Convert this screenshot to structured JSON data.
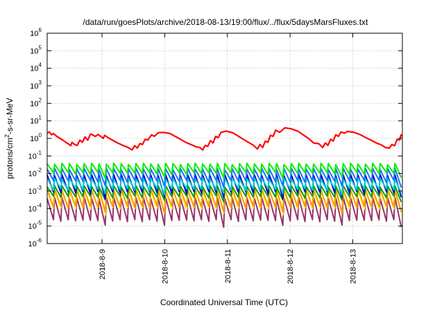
{
  "chart_data": {
    "type": "line",
    "title": "/data/run/goesPlots/archive/2018-08-13/19:00/flux/../flux/5daysMarsFluxes.txt",
    "xlabel": "Coordinated Universal Time (UTC)",
    "ylabel": "protons/cm2-s-sr-MeV",
    "ylabel_parts": {
      "pre": "protons/cm",
      "sup": "2",
      "post": "-s-sr-MeV"
    },
    "y_scale": "log",
    "ylim_exp": [
      -6,
      6
    ],
    "y_tick_exponents": [
      -6,
      -5,
      -4,
      -3,
      -2,
      -1,
      0,
      1,
      2,
      3,
      4,
      5,
      6
    ],
    "y_tick_base": "10",
    "xlim": [
      "2018-08-08T03:00",
      "2018-08-13T19:00"
    ],
    "x_ticks": [
      {
        "date": "2018-08-09T00:00",
        "label": "2018-8-9"
      },
      {
        "date": "2018-08-10T00:00",
        "label": "2018-8-10"
      },
      {
        "date": "2018-08-11T00:00",
        "label": "2018-8-11"
      },
      {
        "date": "2018-08-12T00:00",
        "label": "2018-8-12"
      },
      {
        "date": "2018-08-13T00:00",
        "label": "2018-8-13"
      }
    ],
    "grid": true,
    "series": [
      {
        "color": "#ff0000",
        "sawtooth": false,
        "points": [
          [
            "2018-08-08T03:00",
            2.0
          ],
          [
            "2018-08-08T03:50",
            2.3
          ],
          [
            "2018-08-08T04:40",
            1.6
          ],
          [
            "2018-08-08T05:20",
            1.9
          ],
          [
            "2018-08-08T07:00",
            1.2
          ],
          [
            "2018-08-08T09:00",
            0.8
          ],
          [
            "2018-08-08T10:30",
            0.55
          ],
          [
            "2018-08-08T11:00",
            0.5
          ],
          [
            "2018-08-08T12:00",
            0.38
          ],
          [
            "2018-08-08T12:30",
            0.6
          ],
          [
            "2018-08-08T13:30",
            0.45
          ],
          [
            "2018-08-08T14:30",
            0.4
          ],
          [
            "2018-08-08T15:30",
            0.8
          ],
          [
            "2018-08-08T16:30",
            0.6
          ],
          [
            "2018-08-08T17:30",
            1.2
          ],
          [
            "2018-08-08T18:30",
            0.8
          ],
          [
            "2018-08-08T19:40",
            1.8
          ],
          [
            "2018-08-08T21:30",
            1.3
          ],
          [
            "2018-08-08T22:30",
            1.7
          ],
          [
            "2018-08-09T00:30",
            1.0
          ],
          [
            "2018-08-09T01:00",
            1.5
          ],
          [
            "2018-08-09T02:20",
            1.1
          ],
          [
            "2018-08-09T04:00",
            0.8
          ],
          [
            "2018-08-09T06:00",
            0.55
          ],
          [
            "2018-08-09T08:00",
            0.4
          ],
          [
            "2018-08-09T10:00",
            0.3
          ],
          [
            "2018-08-09T11:30",
            0.22
          ],
          [
            "2018-08-09T12:30",
            0.38
          ],
          [
            "2018-08-09T13:30",
            0.28
          ],
          [
            "2018-08-09T14:30",
            0.5
          ],
          [
            "2018-08-09T15:30",
            0.45
          ],
          [
            "2018-08-09T16:30",
            0.9
          ],
          [
            "2018-08-09T17:30",
            0.8
          ],
          [
            "2018-08-09T19:00",
            1.6
          ],
          [
            "2018-08-09T20:00",
            1.3
          ],
          [
            "2018-08-09T21:30",
            2.1
          ],
          [
            "2018-08-09T23:30",
            2.2
          ],
          [
            "2018-08-10T02:00",
            1.9
          ],
          [
            "2018-08-10T04:00",
            1.3
          ],
          [
            "2018-08-10T06:00",
            0.9
          ],
          [
            "2018-08-10T08:00",
            0.6
          ],
          [
            "2018-08-10T10:00",
            0.45
          ],
          [
            "2018-08-10T12:00",
            0.33
          ],
          [
            "2018-08-10T13:30",
            0.3
          ],
          [
            "2018-08-10T14:30",
            0.22
          ],
          [
            "2018-08-10T15:30",
            0.4
          ],
          [
            "2018-08-10T16:30",
            0.35
          ],
          [
            "2018-08-10T17:30",
            0.75
          ],
          [
            "2018-08-10T18:30",
            0.55
          ],
          [
            "2018-08-10T19:30",
            1.3
          ],
          [
            "2018-08-10T20:30",
            1.1
          ],
          [
            "2018-08-10T21:30",
            2.2
          ],
          [
            "2018-08-10T23:30",
            2.6
          ],
          [
            "2018-08-11T02:00",
            2.1
          ],
          [
            "2018-08-11T04:00",
            1.4
          ],
          [
            "2018-08-11T06:00",
            0.9
          ],
          [
            "2018-08-11T08:00",
            0.6
          ],
          [
            "2018-08-11T10:00",
            0.4
          ],
          [
            "2018-08-11T11:30",
            0.25
          ],
          [
            "2018-08-11T12:30",
            0.45
          ],
          [
            "2018-08-11T13:30",
            0.3
          ],
          [
            "2018-08-11T14:30",
            0.7
          ],
          [
            "2018-08-11T15:30",
            0.6
          ],
          [
            "2018-08-11T16:30",
            1.5
          ],
          [
            "2018-08-11T17:30",
            1.3
          ],
          [
            "2018-08-11T18:30",
            3.0
          ],
          [
            "2018-08-11T20:00",
            2.2
          ],
          [
            "2018-08-11T22:00",
            4.0
          ],
          [
            "2018-08-12T00:30",
            3.5
          ],
          [
            "2018-08-12T03:00",
            2.6
          ],
          [
            "2018-08-12T05:00",
            1.6
          ],
          [
            "2018-08-12T07:00",
            1.0
          ],
          [
            "2018-08-12T09:00",
            0.55
          ],
          [
            "2018-08-12T11:00",
            0.5
          ],
          [
            "2018-08-12T12:30",
            0.3
          ],
          [
            "2018-08-12T13:30",
            0.55
          ],
          [
            "2018-08-12T14:30",
            0.4
          ],
          [
            "2018-08-12T15:30",
            0.9
          ],
          [
            "2018-08-12T16:30",
            0.7
          ],
          [
            "2018-08-12T17:30",
            1.6
          ],
          [
            "2018-08-12T18:30",
            1.3
          ],
          [
            "2018-08-12T19:30",
            2.3
          ],
          [
            "2018-08-12T21:00",
            2.0
          ],
          [
            "2018-08-12T22:00",
            2.5
          ],
          [
            "2018-08-13T00:30",
            2.2
          ],
          [
            "2018-08-13T03:00",
            1.6
          ],
          [
            "2018-08-13T05:00",
            1.1
          ],
          [
            "2018-08-13T07:00",
            0.8
          ],
          [
            "2018-08-13T09:00",
            0.55
          ],
          [
            "2018-08-13T11:00",
            0.42
          ],
          [
            "2018-08-13T12:30",
            0.3
          ],
          [
            "2018-08-13T14:00",
            0.28
          ],
          [
            "2018-08-13T15:00",
            0.45
          ],
          [
            "2018-08-13T16:00",
            0.38
          ],
          [
            "2018-08-13T17:00",
            0.9
          ],
          [
            "2018-08-13T18:00",
            0.8
          ],
          [
            "2018-08-13T18:30",
            1.6
          ],
          [
            "2018-08-13T19:00",
            1.4
          ]
        ]
      },
      {
        "color": "#00ee00",
        "sawtooth": true,
        "periods": 48,
        "high": 0.035,
        "low": 0.01,
        "dip_every": 8,
        "dip_factor": 0.55
      },
      {
        "color": "#1e6fff",
        "sawtooth": true,
        "periods": 48,
        "high": 0.018,
        "low": 0.0035,
        "dip_every": 8,
        "dip_factor": 0.5
      },
      {
        "color": "#00cccc",
        "sawtooth": true,
        "periods": 48,
        "high": 0.005,
        "low": 0.0012,
        "dip_every": 8,
        "dip_factor": 0.55
      },
      {
        "color": "#0000cc",
        "sawtooth": true,
        "periods": 48,
        "high": 0.008,
        "low": 0.0008,
        "dip_every": 8,
        "dip_factor": 0.5
      },
      {
        "color": "#00a000",
        "sawtooth": true,
        "periods": 48,
        "high": 0.0018,
        "low": 0.00045,
        "dip_every": 8,
        "dip_factor": 0.6
      },
      {
        "color": "#ff9900",
        "sawtooth": true,
        "periods": 48,
        "high": 0.0012,
        "low": 0.00012,
        "dip_every": 8,
        "dip_factor": 0.5
      },
      {
        "color": "#ffff33",
        "sawtooth": true,
        "periods": 48,
        "high": 0.0009,
        "low": 0.0001,
        "dip_every": 8,
        "dip_factor": 0.5
      },
      {
        "color": "#993366",
        "sawtooth": true,
        "periods": 48,
        "high": 0.0004,
        "low": 2e-05,
        "dip_every": 8,
        "dip_factor": 0.5
      }
    ]
  }
}
